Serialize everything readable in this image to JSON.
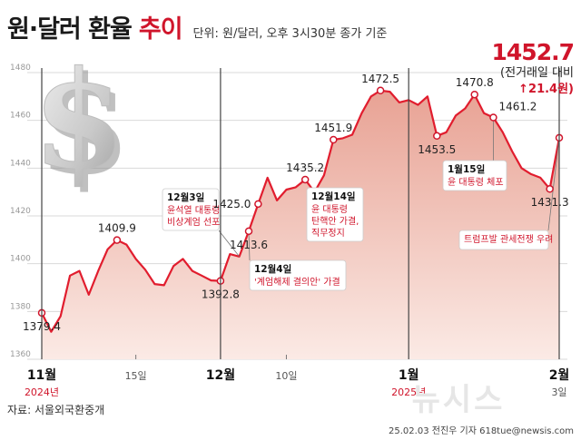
{
  "header": {
    "title": "원·달러 환율",
    "title_accent": "추이",
    "unit": "단위: 원/달러, 오후 3시30분 종가 기준"
  },
  "last": {
    "value": "1452.7",
    "caption": "(전거래일 대비",
    "change": "↑21.4원)"
  },
  "footer": {
    "source": "자료: 서울외국환중개",
    "credit": "25.02.03 전진우 기자 618tue@newsis.com",
    "watermark": "뉴시스"
  },
  "colors": {
    "accent": "#d0152b",
    "area_top": "#e8a294",
    "area_bottom": "#fbeae5",
    "line": "#e11d2e"
  },
  "chart_data": {
    "type": "area",
    "ylim": [
      1360,
      1480
    ],
    "y_ticks": [
      1360,
      1380,
      1400,
      1420,
      1440,
      1460,
      1480
    ],
    "x_ticks": [
      {
        "index": 0,
        "label": "11월",
        "major": true,
        "sub": "2024년"
      },
      {
        "index": 10,
        "label": "15일",
        "major": false
      },
      {
        "index": 19,
        "label": "12월",
        "major": true
      },
      {
        "index": 26,
        "label": "10일",
        "major": false
      },
      {
        "index": 39,
        "label": "1월",
        "major": true,
        "sub": "2025년"
      },
      {
        "index": 55,
        "label": "2월",
        "major": true,
        "sub": "3일"
      }
    ],
    "series": [
      {
        "values": [
          1379.4,
          1371.5,
          1378.0,
          1395.0,
          1397.0,
          1387.0,
          1397.0,
          1406.0,
          1409.9,
          1408.0,
          1402.0,
          1397.5,
          1391.5,
          1391.0,
          1399.0,
          1402.0,
          1397.0,
          1395.0,
          1393.0,
          1392.8,
          1404.0,
          1403.0,
          1413.6,
          1425.0,
          1436.0,
          1426.5,
          1431.0,
          1432.0,
          1435.2,
          1430.0,
          1437.0,
          1451.9,
          1452.5,
          1454.0,
          1463.0,
          1470.0,
          1472.5,
          1472.0,
          1467.5,
          1468.5,
          1466.5,
          1470.0,
          1453.5,
          1455.0,
          1462.0,
          1465.0,
          1470.8,
          1463.0,
          1461.2,
          1455.0,
          1447.0,
          1440.0,
          1437.5,
          1436.0,
          1431.3,
          1452.7
        ]
      }
    ],
    "data_labels": [
      {
        "index": 0,
        "text": "1379.4"
      },
      {
        "index": 8,
        "text": "1409.9"
      },
      {
        "index": 19,
        "text": "1392.8"
      },
      {
        "index": 22,
        "text": "1413.6"
      },
      {
        "index": 23,
        "text": "1425.0"
      },
      {
        "index": 28,
        "text": "1435.2"
      },
      {
        "index": 31,
        "text": "1451.9"
      },
      {
        "index": 36,
        "text": "1472.5"
      },
      {
        "index": 42,
        "text": "1453.5"
      },
      {
        "index": 46,
        "text": "1470.8"
      },
      {
        "index": 48,
        "text": "1461.2"
      },
      {
        "index": 54,
        "text": "1431.3"
      }
    ],
    "annotations": [
      {
        "index": 21,
        "date": "12월3일",
        "lines": [
          "윤석열 대통령",
          "비상계엄 선포"
        ]
      },
      {
        "index": 22,
        "date": "12월4일",
        "lines": [
          "'계엄해제 결의안' 가결"
        ]
      },
      {
        "index": 29,
        "date": "12월14일",
        "lines": [
          "윤 대통령",
          "탄핵안 가결,",
          "직무정지"
        ]
      },
      {
        "index": 48,
        "date": "1월15일",
        "lines": [
          "윤 대통령 체포"
        ]
      },
      {
        "index": 55,
        "date": "",
        "lines": [
          "트럼프발 관세전쟁 우려"
        ]
      }
    ]
  }
}
